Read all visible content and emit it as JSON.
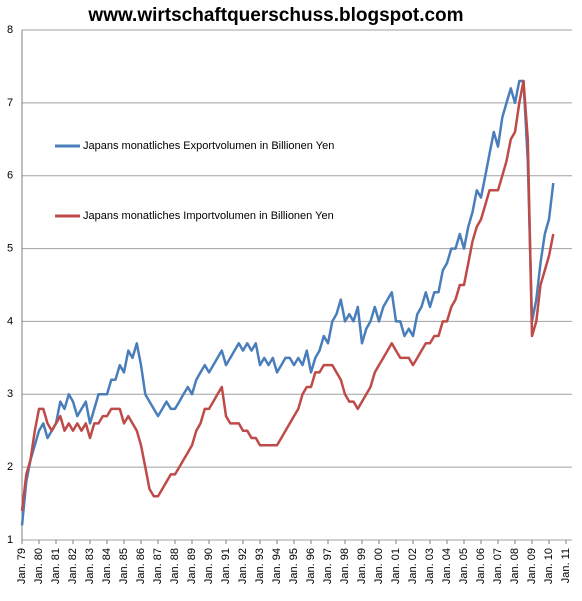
{
  "chart_data": {
    "type": "line",
    "title": "www.wirtschaftquerschuss.blogspot.com",
    "categories": [
      "Jan. 79",
      null,
      null,
      null,
      "Jan. 80",
      null,
      null,
      null,
      "Jan. 81",
      null,
      null,
      null,
      "Jan. 82",
      null,
      null,
      null,
      "Jan. 83",
      null,
      null,
      null,
      "Jan. 84",
      null,
      null,
      null,
      "Jan. 85",
      null,
      null,
      null,
      "Jan. 86",
      null,
      null,
      null,
      "Jan. 87",
      null,
      null,
      null,
      "Jan. 88",
      null,
      null,
      null,
      "Jan. 89",
      null,
      null,
      null,
      "Jan. 90",
      null,
      null,
      null,
      "Jan. 91",
      null,
      null,
      null,
      "Jan. 92",
      null,
      null,
      null,
      "Jan. 93",
      null,
      null,
      null,
      "Jan. 94",
      null,
      null,
      null,
      "Jan. 95",
      null,
      null,
      null,
      "Jan. 96",
      null,
      null,
      null,
      "Jan. 97",
      null,
      null,
      null,
      "Jan. 98",
      null,
      null,
      null,
      "Jan. 99",
      null,
      null,
      null,
      "Jan. 00",
      null,
      null,
      null,
      "Jan. 01",
      null,
      null,
      null,
      "Jan. 02",
      null,
      null,
      null,
      "Jan. 03",
      null,
      null,
      null,
      "Jan. 04",
      null,
      null,
      null,
      "Jan. 05",
      null,
      null,
      null,
      "Jan. 06",
      null,
      null,
      null,
      "Jan. 07",
      null,
      null,
      null,
      "Jan. 08",
      null,
      null,
      null,
      "Jan. 09",
      null,
      null,
      null,
      "Jan. 10",
      null,
      null,
      null,
      "Jan. 11"
    ],
    "series": [
      {
        "name": "Japans monatliches Exportvolumen  in Billionen Yen",
        "color": "#4a7ebb",
        "values": [
          1.2,
          1.8,
          2.1,
          2.3,
          2.5,
          2.6,
          2.4,
          2.5,
          2.6,
          2.9,
          2.8,
          3.0,
          2.9,
          2.7,
          2.8,
          2.9,
          2.6,
          2.8,
          3.0,
          3.0,
          3.0,
          3.2,
          3.2,
          3.4,
          3.3,
          3.6,
          3.5,
          3.7,
          3.4,
          3.0,
          2.9,
          2.8,
          2.7,
          2.8,
          2.9,
          2.8,
          2.8,
          2.9,
          3.0,
          3.1,
          3.0,
          3.2,
          3.3,
          3.4,
          3.3,
          3.4,
          3.5,
          3.6,
          3.4,
          3.5,
          3.6,
          3.7,
          3.6,
          3.7,
          3.6,
          3.7,
          3.4,
          3.5,
          3.4,
          3.5,
          3.3,
          3.4,
          3.5,
          3.5,
          3.4,
          3.5,
          3.4,
          3.6,
          3.3,
          3.5,
          3.6,
          3.8,
          3.7,
          4.0,
          4.1,
          4.3,
          4.0,
          4.1,
          4.0,
          4.2,
          3.7,
          3.9,
          4.0,
          4.2,
          4.0,
          4.2,
          4.3,
          4.4,
          4.0,
          4.0,
          3.8,
          3.9,
          3.8,
          4.1,
          4.2,
          4.4,
          4.2,
          4.4,
          4.4,
          4.7,
          4.8,
          5.0,
          5.0,
          5.2,
          5.0,
          5.3,
          5.5,
          5.8,
          5.7,
          6.0,
          6.3,
          6.6,
          6.4,
          6.8,
          7.0,
          7.2,
          7.0,
          7.3,
          7.3,
          6.2,
          4.0,
          4.3,
          4.8,
          5.2,
          5.4,
          5.9,
          null,
          null,
          null
        ]
      },
      {
        "name": "Japans monatliches Importvolumen  in Billionen Yen",
        "color": "#be4b48",
        "values": [
          1.4,
          1.9,
          2.1,
          2.5,
          2.8,
          2.8,
          2.6,
          2.5,
          2.6,
          2.7,
          2.5,
          2.6,
          2.5,
          2.6,
          2.5,
          2.6,
          2.4,
          2.6,
          2.6,
          2.7,
          2.7,
          2.8,
          2.8,
          2.8,
          2.6,
          2.7,
          2.6,
          2.5,
          2.3,
          2.0,
          1.7,
          1.6,
          1.6,
          1.7,
          1.8,
          1.9,
          1.9,
          2.0,
          2.1,
          2.2,
          2.3,
          2.5,
          2.6,
          2.8,
          2.8,
          2.9,
          3.0,
          3.1,
          2.7,
          2.6,
          2.6,
          2.6,
          2.5,
          2.5,
          2.4,
          2.4,
          2.3,
          2.3,
          2.3,
          2.3,
          2.3,
          2.4,
          2.5,
          2.6,
          2.7,
          2.8,
          3.0,
          3.1,
          3.1,
          3.3,
          3.3,
          3.4,
          3.4,
          3.4,
          3.3,
          3.2,
          3.0,
          2.9,
          2.9,
          2.8,
          2.9,
          3.0,
          3.1,
          3.3,
          3.4,
          3.5,
          3.6,
          3.7,
          3.6,
          3.5,
          3.5,
          3.5,
          3.4,
          3.5,
          3.6,
          3.7,
          3.7,
          3.8,
          3.8,
          4.0,
          4.0,
          4.2,
          4.3,
          4.5,
          4.5,
          4.8,
          5.1,
          5.3,
          5.4,
          5.6,
          5.8,
          5.8,
          5.8,
          6.0,
          6.2,
          6.5,
          6.6,
          7.0,
          7.3,
          6.5,
          3.8,
          4.0,
          4.5,
          4.7,
          4.9,
          5.2,
          null,
          null,
          null
        ]
      }
    ],
    "ylim": [
      1,
      8
    ],
    "yticks": [
      1,
      2,
      3,
      4,
      5,
      6,
      7,
      8
    ],
    "grid": true
  }
}
